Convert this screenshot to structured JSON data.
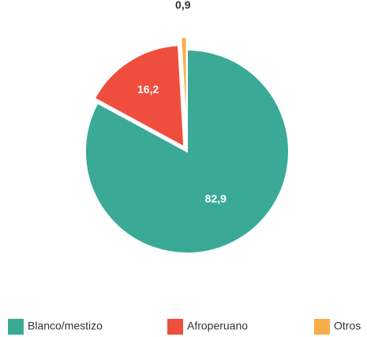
{
  "chart_data": {
    "type": "pie",
    "categories": [
      "Blanco/mestizo",
      "Afroperuano",
      "Otros"
    ],
    "values": [
      82.9,
      16.2,
      0.9
    ],
    "value_labels": [
      "82,9",
      "16,2",
      "0,9"
    ],
    "colors": [
      "#3aaa97",
      "#ef4e3f",
      "#f9ad4a"
    ],
    "legend": "bottom"
  }
}
